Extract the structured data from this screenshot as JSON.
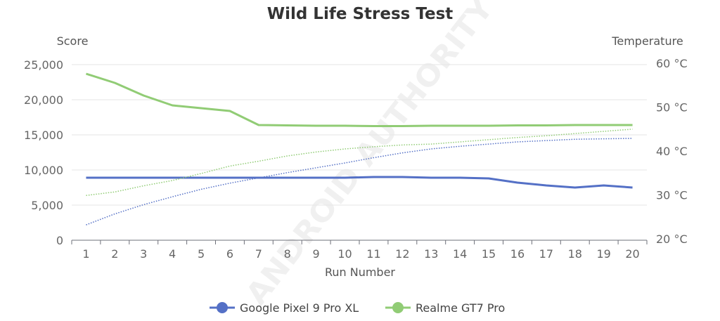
{
  "chart_data": {
    "type": "line",
    "title": "Wild Life Stress Test",
    "xlabel": "Run Number",
    "ylabel": "Score",
    "y2label": "Temperature",
    "categories": [
      "1",
      "2",
      "3",
      "4",
      "5",
      "6",
      "7",
      "8",
      "9",
      "10",
      "11",
      "12",
      "13",
      "14",
      "15",
      "16",
      "17",
      "18",
      "19",
      "20"
    ],
    "ylim": [
      0,
      25000
    ],
    "yticks": [
      "0",
      "5,000",
      "10,000",
      "15,000",
      "20,000",
      "25,000"
    ],
    "y2lim": [
      20,
      60
    ],
    "y2ticks": [
      "20 °C",
      "30 °C",
      "40 °C",
      "50 °C",
      "60 °C"
    ],
    "grid": true,
    "legend_position": "bottom",
    "series": [
      {
        "name": "Google Pixel 9 Pro XL",
        "color": "#5470c6",
        "score": [
          8900,
          8900,
          8900,
          8900,
          8900,
          8900,
          8900,
          8900,
          8900,
          8900,
          9000,
          9000,
          8900,
          8900,
          8800,
          8200,
          7800,
          7500,
          7800,
          7500
        ],
        "temperature": [
          23.5,
          26.0,
          28.1,
          29.9,
          31.6,
          33.0,
          34.2,
          35.4,
          36.5,
          37.6,
          38.8,
          39.9,
          40.8,
          41.4,
          41.9,
          42.4,
          42.7,
          43.0,
          43.1,
          43.2
        ]
      },
      {
        "name": "Realme GT7 Pro",
        "color": "#91cc75",
        "score": [
          23700,
          22400,
          20600,
          19200,
          18800,
          18400,
          16400,
          16350,
          16300,
          16300,
          16250,
          16250,
          16300,
          16300,
          16300,
          16350,
          16350,
          16400,
          16400,
          16400
        ],
        "temperature": [
          30.2,
          31.0,
          32.4,
          33.6,
          35.2,
          36.9,
          38.0,
          39.2,
          40.1,
          40.8,
          41.3,
          41.7,
          41.9,
          42.4,
          42.9,
          43.4,
          43.8,
          44.3,
          44.8,
          45.3
        ]
      }
    ]
  },
  "watermark": "ANDROID AUTHORITY"
}
